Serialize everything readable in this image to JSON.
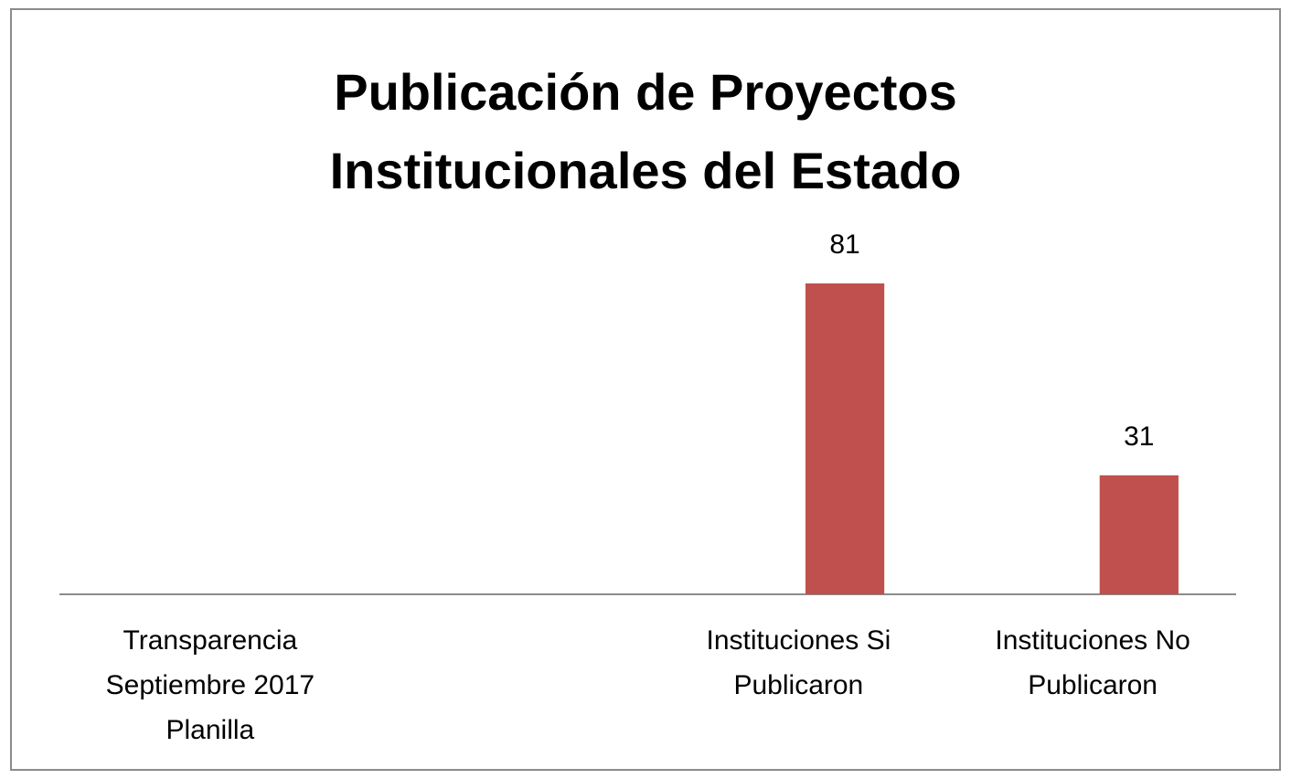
{
  "chart_data": {
    "type": "bar",
    "title": "Publicación de Proyectos\nInstitucionales del Estado",
    "categories": [
      "Transparencia  Septiembre  2017\nPlanilla",
      null,
      "Instituciones  Si\nPublicaron",
      "Instituciones  No\nPublicaron"
    ],
    "values": [
      null,
      null,
      81,
      31
    ],
    "color": "#c0504d",
    "ylim": [
      0,
      96
    ]
  }
}
